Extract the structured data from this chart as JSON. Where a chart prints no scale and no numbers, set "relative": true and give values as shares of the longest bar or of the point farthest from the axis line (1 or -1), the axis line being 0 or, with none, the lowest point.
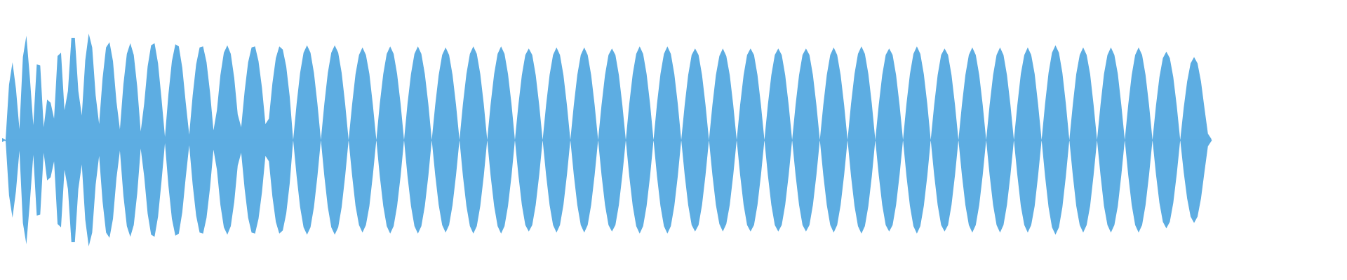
{
  "chart_data": {
    "type": "area",
    "relative": true,
    "categories": [
      null,
      null,
      null,
      null,
      null,
      null,
      null,
      null,
      null,
      null,
      null,
      null,
      null,
      null,
      null,
      null,
      null,
      null,
      null,
      null,
      null,
      null,
      null,
      null,
      null,
      null,
      null,
      null,
      null,
      null,
      null,
      null,
      null,
      null,
      null,
      null,
      null,
      null,
      null,
      null,
      null,
      null,
      null,
      null,
      null,
      null,
      null,
      null,
      null,
      null,
      null,
      null,
      null,
      null,
      null,
      null,
      null,
      null,
      null,
      null,
      null,
      null,
      null,
      null,
      null,
      null,
      null,
      null,
      null,
      null,
      null,
      null,
      null,
      null,
      null,
      null,
      null,
      null,
      null,
      null,
      null,
      null,
      null,
      null,
      null,
      null,
      null,
      null,
      null,
      null,
      null,
      null,
      null,
      null,
      null,
      null,
      null,
      null,
      null,
      null,
      null,
      null,
      null,
      null,
      null,
      null,
      null,
      null,
      null,
      null,
      null,
      null,
      null,
      null,
      null,
      null,
      null,
      null,
      null,
      null,
      null,
      null,
      null,
      null,
      null,
      null,
      null,
      null,
      null,
      null,
      null,
      null,
      null,
      null,
      null,
      null,
      null,
      null,
      null,
      null,
      null,
      null,
      null,
      null,
      null,
      null,
      null,
      null,
      null,
      null,
      null,
      null,
      null,
      null,
      null,
      null,
      null,
      null,
      null,
      null,
      null,
      null,
      null,
      null,
      null,
      null,
      null,
      null,
      null,
      null,
      null,
      null,
      null,
      null,
      null,
      null,
      null,
      null,
      null,
      null,
      null,
      null,
      null,
      null,
      null,
      null,
      null,
      null,
      null,
      null,
      null,
      null,
      null,
      null,
      null,
      null,
      null,
      null,
      null,
      null,
      null,
      null,
      null,
      null,
      null,
      null,
      null,
      null,
      null,
      null,
      null,
      null,
      null,
      null,
      null,
      null,
      null,
      null,
      null,
      null,
      null,
      null,
      null,
      null,
      null,
      null,
      null,
      null,
      null,
      null,
      null,
      null,
      null,
      null,
      null,
      null,
      null,
      null,
      null,
      null,
      null,
      null,
      null,
      null,
      null,
      null,
      null,
      null,
      null,
      null,
      null,
      null,
      null,
      null,
      null,
      null,
      null,
      null,
      null,
      null,
      null,
      null,
      null,
      null,
      null,
      null,
      null,
      null,
      null,
      null,
      null,
      null,
      null,
      null,
      null,
      null,
      null,
      null,
      null,
      null,
      null,
      null,
      null,
      null,
      null,
      null,
      null,
      null,
      null,
      null,
      null,
      null,
      null,
      null,
      null,
      null,
      null,
      null,
      null,
      null,
      null,
      null,
      null,
      null,
      null,
      null,
      null,
      null,
      null,
      null,
      null,
      null,
      null,
      null,
      null,
      null,
      null,
      null,
      null,
      null,
      null,
      null,
      null,
      null,
      null,
      null,
      null,
      null,
      null,
      null,
      null,
      null,
      null,
      null,
      null,
      null,
      null,
      null,
      null,
      null,
      null,
      null,
      null,
      null,
      null,
      null,
      null,
      null,
      null,
      null
    ],
    "series": [
      {
        "color": "#5dade2",
        "values": [
          0.02,
          0,
          0.52,
          0.73,
          0.48,
          0.1,
          0.78,
          0.98,
          0.59,
          0.14,
          0.71,
          0.7,
          0.12,
          0.38,
          0.35,
          0.2,
          0.79,
          0.82,
          0.28,
          0.46,
          0.96,
          0.96,
          0.46,
          0.23,
          0.75,
          1.0,
          0.87,
          0.42,
          0.15,
          0.58,
          0.87,
          0.92,
          0.74,
          0.36,
          0.1,
          0.52,
          0.81,
          0.91,
          0.8,
          0.5,
          0.08,
          0.34,
          0.69,
          0.89,
          0.91,
          0.72,
          0.39,
          0.03,
          0.43,
          0.74,
          0.9,
          0.88,
          0.68,
          0.35,
          0.05,
          0.42,
          0.71,
          0.87,
          0.88,
          0.73,
          0.45,
          0.09,
          0.28,
          0.61,
          0.82,
          0.89,
          0.81,
          0.58,
          0.24,
          0.12,
          0.46,
          0.73,
          0.87,
          0.88,
          0.74,
          0.49,
          0.15,
          0.2,
          0.53,
          0.77,
          0.88,
          0.85,
          0.69,
          0.41,
          0,
          0.34,
          0.63,
          0.82,
          0.89,
          0.82,
          0.63,
          0.34,
          0,
          0.34,
          0.63,
          0.82,
          0.89,
          0.82,
          0.63,
          0.34,
          0,
          0.33,
          0.62,
          0.8,
          0.87,
          0.8,
          0.62,
          0.33,
          0,
          0.34,
          0.62,
          0.81,
          0.88,
          0.81,
          0.62,
          0.34,
          0,
          0.34,
          0.62,
          0.81,
          0.88,
          0.81,
          0.62,
          0.34,
          0,
          0.33,
          0.61,
          0.8,
          0.87,
          0.8,
          0.61,
          0.33,
          0,
          0.34,
          0.62,
          0.81,
          0.88,
          0.81,
          0.62,
          0.34,
          0,
          0.34,
          0.62,
          0.81,
          0.88,
          0.81,
          0.62,
          0.34,
          0,
          0.33,
          0.61,
          0.8,
          0.86,
          0.8,
          0.61,
          0.33,
          0,
          0.33,
          0.61,
          0.8,
          0.87,
          0.8,
          0.61,
          0.33,
          0,
          0.33,
          0.61,
          0.8,
          0.87,
          0.8,
          0.61,
          0.33,
          0,
          0.33,
          0.61,
          0.8,
          0.86,
          0.8,
          0.61,
          0.33,
          0,
          0.34,
          0.62,
          0.81,
          0.88,
          0.81,
          0.62,
          0.34,
          0,
          0.34,
          0.62,
          0.81,
          0.88,
          0.81,
          0.62,
          0.34,
          0,
          0.33,
          0.61,
          0.8,
          0.86,
          0.8,
          0.61,
          0.33,
          0,
          0.33,
          0.61,
          0.79,
          0.86,
          0.79,
          0.61,
          0.33,
          0,
          0.33,
          0.61,
          0.8,
          0.86,
          0.8,
          0.61,
          0.33,
          0,
          0.33,
          0.61,
          0.8,
          0.86,
          0.8,
          0.61,
          0.33,
          0,
          0.33,
          0.61,
          0.8,
          0.86,
          0.8,
          0.61,
          0.33,
          0,
          0.33,
          0.61,
          0.8,
          0.87,
          0.8,
          0.61,
          0.33,
          0,
          0.34,
          0.62,
          0.81,
          0.88,
          0.81,
          0.62,
          0.34,
          0,
          0.33,
          0.61,
          0.8,
          0.86,
          0.8,
          0.61,
          0.33,
          0,
          0.34,
          0.62,
          0.81,
          0.88,
          0.81,
          0.62,
          0.34,
          0,
          0.33,
          0.61,
          0.8,
          0.86,
          0.8,
          0.61,
          0.33,
          0,
          0.33,
          0.61,
          0.8,
          0.87,
          0.8,
          0.61,
          0.33,
          0,
          0.33,
          0.61,
          0.8,
          0.87,
          0.8,
          0.61,
          0.33,
          0,
          0.33,
          0.62,
          0.8,
          0.87,
          0.8,
          0.62,
          0.33,
          0,
          0.34,
          0.63,
          0.82,
          0.89,
          0.82,
          0.63,
          0.34,
          0,
          0.33,
          0.62,
          0.8,
          0.87,
          0.8,
          0.62,
          0.33,
          0,
          0.33,
          0.62,
          0.8,
          0.87,
          0.8,
          0.62,
          0.33,
          0,
          0.33,
          0.61,
          0.8,
          0.87,
          0.8,
          0.61,
          0.33,
          0,
          0.32,
          0.59,
          0.77,
          0.83,
          0.77,
          0.59,
          0.32,
          0,
          0.3,
          0.55,
          0.72,
          0.78,
          0.72,
          0.55,
          0.3,
          0.06,
          0.01
        ]
      },
      {
        "color": "#5dade2",
        "values": [
          -0.02,
          0,
          -0.52,
          -0.73,
          -0.48,
          -0.1,
          -0.78,
          -0.98,
          -0.59,
          -0.14,
          -0.71,
          -0.7,
          -0.12,
          -0.38,
          -0.35,
          -0.2,
          -0.79,
          -0.82,
          -0.28,
          -0.46,
          -0.96,
          -0.96,
          -0.46,
          -0.23,
          -0.75,
          -1.0,
          -0.87,
          -0.42,
          -0.15,
          -0.58,
          -0.87,
          -0.92,
          -0.74,
          -0.36,
          -0.1,
          -0.52,
          -0.81,
          -0.91,
          -0.8,
          -0.5,
          -0.08,
          -0.34,
          -0.69,
          -0.89,
          -0.91,
          -0.72,
          -0.39,
          -0.03,
          -0.43,
          -0.74,
          -0.9,
          -0.88,
          -0.68,
          -0.35,
          -0.05,
          -0.42,
          -0.71,
          -0.87,
          -0.88,
          -0.73,
          -0.45,
          -0.09,
          -0.28,
          -0.61,
          -0.82,
          -0.89,
          -0.81,
          -0.58,
          -0.24,
          -0.12,
          -0.46,
          -0.73,
          -0.87,
          -0.88,
          -0.74,
          -0.49,
          -0.15,
          -0.2,
          -0.53,
          -0.77,
          -0.88,
          -0.85,
          -0.69,
          -0.41,
          0,
          -0.34,
          -0.63,
          -0.82,
          -0.89,
          -0.82,
          -0.63,
          -0.34,
          0,
          -0.34,
          -0.63,
          -0.82,
          -0.89,
          -0.82,
          -0.63,
          -0.34,
          0,
          -0.33,
          -0.62,
          -0.8,
          -0.87,
          -0.8,
          -0.62,
          -0.33,
          0,
          -0.34,
          -0.62,
          -0.81,
          -0.88,
          -0.81,
          -0.62,
          -0.34,
          0,
          -0.34,
          -0.62,
          -0.81,
          -0.88,
          -0.81,
          -0.62,
          -0.34,
          0,
          -0.33,
          -0.61,
          -0.8,
          -0.87,
          -0.8,
          -0.61,
          -0.33,
          0,
          -0.34,
          -0.62,
          -0.81,
          -0.88,
          -0.81,
          -0.62,
          -0.34,
          0,
          -0.34,
          -0.62,
          -0.81,
          -0.88,
          -0.81,
          -0.62,
          -0.34,
          0,
          -0.33,
          -0.61,
          -0.8,
          -0.86,
          -0.8,
          -0.61,
          -0.33,
          0,
          -0.33,
          -0.61,
          -0.8,
          -0.87,
          -0.8,
          -0.61,
          -0.33,
          0,
          -0.33,
          -0.61,
          -0.8,
          -0.87,
          -0.8,
          -0.61,
          -0.33,
          0,
          -0.33,
          -0.61,
          -0.8,
          -0.86,
          -0.8,
          -0.61,
          -0.33,
          0,
          -0.34,
          -0.62,
          -0.81,
          -0.88,
          -0.81,
          -0.62,
          -0.34,
          0,
          -0.34,
          -0.62,
          -0.81,
          -0.88,
          -0.81,
          -0.62,
          -0.34,
          0,
          -0.33,
          -0.61,
          -0.8,
          -0.86,
          -0.8,
          -0.61,
          -0.33,
          0,
          -0.33,
          -0.61,
          -0.79,
          -0.86,
          -0.79,
          -0.61,
          -0.33,
          0,
          -0.33,
          -0.61,
          -0.8,
          -0.86,
          -0.8,
          -0.61,
          -0.33,
          0,
          -0.33,
          -0.61,
          -0.8,
          -0.86,
          -0.8,
          -0.61,
          -0.33,
          0,
          -0.33,
          -0.61,
          -0.8,
          -0.86,
          -0.8,
          -0.61,
          -0.33,
          0,
          -0.33,
          -0.61,
          -0.8,
          -0.87,
          -0.8,
          -0.61,
          -0.33,
          0,
          -0.34,
          -0.62,
          -0.81,
          -0.88,
          -0.81,
          -0.62,
          -0.34,
          0,
          -0.33,
          -0.61,
          -0.8,
          -0.86,
          -0.8,
          -0.61,
          -0.33,
          0,
          -0.34,
          -0.62,
          -0.81,
          -0.88,
          -0.81,
          -0.62,
          -0.34,
          0,
          -0.33,
          -0.61,
          -0.8,
          -0.86,
          -0.8,
          -0.61,
          -0.33,
          0,
          -0.33,
          -0.61,
          -0.8,
          -0.87,
          -0.8,
          -0.61,
          -0.33,
          0,
          -0.33,
          -0.61,
          -0.8,
          -0.87,
          -0.8,
          -0.61,
          -0.33,
          0,
          -0.33,
          -0.62,
          -0.8,
          -0.87,
          -0.8,
          -0.62,
          -0.33,
          0,
          -0.34,
          -0.63,
          -0.82,
          -0.89,
          -0.82,
          -0.63,
          -0.34,
          0,
          -0.33,
          -0.62,
          -0.8,
          -0.87,
          -0.8,
          -0.62,
          -0.33,
          0,
          -0.33,
          -0.62,
          -0.8,
          -0.87,
          -0.8,
          -0.62,
          -0.33,
          0,
          -0.33,
          -0.61,
          -0.8,
          -0.87,
          -0.8,
          -0.61,
          -0.33,
          0,
          -0.32,
          -0.59,
          -0.77,
          -0.83,
          -0.77,
          -0.59,
          -0.32,
          0,
          -0.3,
          -0.55,
          -0.72,
          -0.78,
          -0.72,
          -0.55,
          -0.3,
          -0.06,
          -0.01
        ]
      }
    ]
  }
}
